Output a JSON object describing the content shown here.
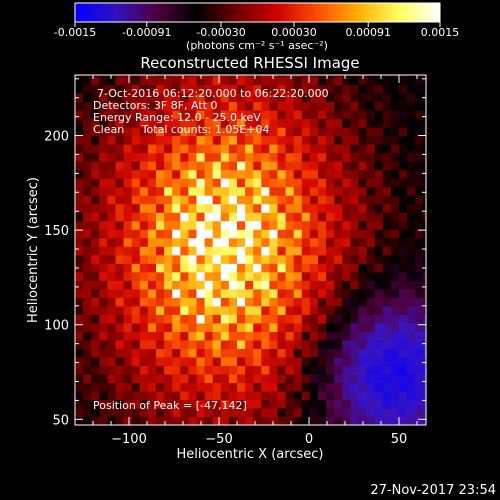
{
  "colorbar": {
    "ticks": [
      "-0.0015",
      "-0.00091",
      "-0.00030",
      "0.00030",
      "0.00091",
      "0.0015"
    ],
    "tick_values": [
      -0.0015,
      -0.00091,
      -0.0003,
      0.0003,
      0.00091,
      0.0015
    ],
    "range": [
      -0.0015,
      0.0015
    ],
    "unit_label": "(photons cm⁻² s⁻¹ asec⁻²)",
    "colors": [
      "#0000ff",
      "#3010c0",
      "#500040",
      "#000000",
      "#700000",
      "#d00000",
      "#ff5000",
      "#ffb000",
      "#ffff60",
      "#ffffff"
    ]
  },
  "chart_data": {
    "type": "heatmap",
    "title": "Reconstructed RHESSI Image",
    "xlabel": "Heliocentric X (arcsec)",
    "ylabel": "Heliocentric Y (arcsec)",
    "xlim": [
      -130,
      65
    ],
    "ylim": [
      47,
      232
    ],
    "xticks": [
      -100,
      -50,
      0,
      50
    ],
    "xtick_labels": [
      "−100",
      "−50",
      "0",
      "50"
    ],
    "yticks": [
      50,
      100,
      150,
      200
    ],
    "ytick_labels": [
      "50",
      "100",
      "150",
      "200"
    ],
    "peak_position": [
      -47,
      142
    ],
    "annotations": {
      "time": "7-Oct-2016 06:12:20.000 to 06:22:20.000",
      "detectors": "Detectors: 3F 8F, Att 0",
      "energy": "Energy Range: 12.0 - 25.0 keV",
      "clean": "Clean     Total counts: 1.05E+04",
      "peak": "Position of Peak = [-47,142]"
    }
  },
  "footer": {
    "timestamp": "27-Nov-2017 23:54"
  }
}
